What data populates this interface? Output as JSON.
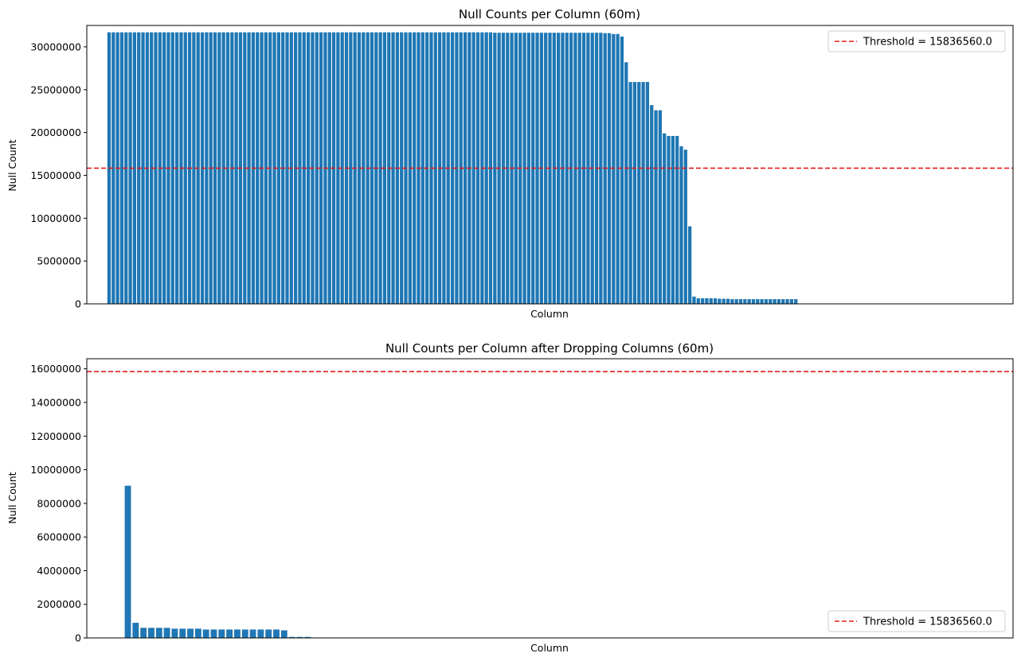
{
  "colors": {
    "bar": "#1f77b4",
    "threshold": "#e41a1c",
    "axis": "#000000"
  },
  "chart_data": [
    {
      "type": "bar",
      "title": "Null Counts per Column (60m)",
      "xlabel": "Column",
      "ylabel": "Null Count",
      "ylim": [
        0,
        32500000
      ],
      "yticks": [
        0,
        5000000,
        10000000,
        15000000,
        20000000,
        25000000,
        30000000
      ],
      "ytick_labels": [
        "0",
        "5000000",
        "10000000",
        "15000000",
        "20000000",
        "25000000",
        "30000000"
      ],
      "xticks_visible": false,
      "grid": false,
      "legend": {
        "placement": "top-right",
        "entries": [
          "Threshold = 15836560.0"
        ]
      },
      "threshold": 15836560.0,
      "n_columns": 210,
      "values": [
        31700000,
        31700000,
        31700000,
        31700000,
        31700000,
        31700000,
        31700000,
        31700000,
        31700000,
        31700000,
        31700000,
        31700000,
        31700000,
        31700000,
        31700000,
        31700000,
        31700000,
        31700000,
        31700000,
        31700000,
        31700000,
        31700000,
        31700000,
        31700000,
        31700000,
        31700000,
        31700000,
        31700000,
        31700000,
        31700000,
        31700000,
        31700000,
        31700000,
        31700000,
        31700000,
        31700000,
        31700000,
        31700000,
        31700000,
        31700000,
        31700000,
        31700000,
        31700000,
        31700000,
        31700000,
        31700000,
        31700000,
        31700000,
        31700000,
        31700000,
        31700000,
        31700000,
        31700000,
        31700000,
        31700000,
        31700000,
        31700000,
        31700000,
        31700000,
        31700000,
        31700000,
        31700000,
        31700000,
        31700000,
        31700000,
        31700000,
        31700000,
        31700000,
        31700000,
        31700000,
        31700000,
        31700000,
        31700000,
        31700000,
        31700000,
        31700000,
        31700000,
        31700000,
        31700000,
        31700000,
        31700000,
        31700000,
        31700000,
        31700000,
        31700000,
        31700000,
        31700000,
        31700000,
        31700000,
        31700000,
        31700000,
        31650000,
        31650000,
        31650000,
        31650000,
        31650000,
        31650000,
        31650000,
        31650000,
        31650000,
        31650000,
        31650000,
        31650000,
        31650000,
        31650000,
        31650000,
        31650000,
        31650000,
        31650000,
        31650000,
        31650000,
        31650000,
        31650000,
        31650000,
        31650000,
        31650000,
        31650000,
        31600000,
        31600000,
        31500000,
        31500000,
        31200000,
        28200000,
        25900000,
        25900000,
        25900000,
        25900000,
        25900000,
        23200000,
        22600000,
        22600000,
        19900000,
        19600000,
        19600000,
        19600000,
        18400000,
        18000000,
        9050000,
        850000,
        650000,
        650000,
        650000,
        650000,
        650000,
        600000,
        600000,
        600000,
        550000,
        550000,
        550000,
        550000,
        550000,
        550000,
        550000,
        550000,
        550000,
        550000,
        550000,
        550000,
        550000,
        550000,
        550000,
        550000
      ],
      "series": [
        {
          "name": "Threshold = 15836560.0",
          "kind": "hline",
          "value": 15836560.0
        }
      ]
    },
    {
      "type": "bar",
      "title": "Null Counts per Column after Dropping Columns (60m)",
      "xlabel": "Column",
      "ylabel": "Null Count",
      "ylim": [
        0,
        16600000
      ],
      "yticks": [
        0,
        2000000,
        4000000,
        6000000,
        8000000,
        10000000,
        12000000,
        14000000,
        16000000
      ],
      "ytick_labels": [
        "0",
        "2000000",
        "4000000",
        "6000000",
        "8000000",
        "10000000",
        "12000000",
        "14000000",
        "16000000"
      ],
      "xticks_visible": false,
      "grid": false,
      "legend": {
        "placement": "bottom-right",
        "entries": [
          "Threshold = 15836560.0"
        ]
      },
      "threshold": 15836560.0,
      "n_columns": 110,
      "values": [
        9050000,
        900000,
        600000,
        600000,
        600000,
        600000,
        550000,
        550000,
        550000,
        550000,
        500000,
        500000,
        500000,
        500000,
        500000,
        500000,
        500000,
        500000,
        500000,
        500000,
        450000,
        60000,
        60000,
        60000
      ],
      "series": [
        {
          "name": "Threshold = 15836560.0",
          "kind": "hline",
          "value": 15836560.0
        }
      ]
    }
  ]
}
